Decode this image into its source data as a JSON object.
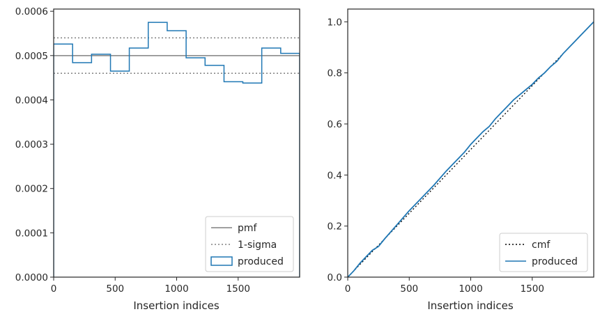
{
  "chart_data": [
    {
      "type": "step",
      "xlabel": "Insertion indices",
      "ylabel": "",
      "xlim": [
        0,
        2000
      ],
      "ylim": [
        0,
        0.000605
      ],
      "xticks": [
        0,
        500,
        1000,
        1500
      ],
      "xtick_labels": [
        "0",
        "500",
        "1000",
        "1500"
      ],
      "yticks": [
        0,
        0.0001,
        0.0002,
        0.0003,
        0.0004,
        0.0005,
        0.0006
      ],
      "ytick_labels": [
        "0.0000",
        "0.0001",
        "0.0002",
        "0.0003",
        "0.0004",
        "0.0005",
        "0.0006"
      ],
      "bin_edges": [
        0,
        154,
        308,
        462,
        615,
        769,
        923,
        1077,
        1231,
        1385,
        1538,
        1692,
        1846,
        2000
      ],
      "series": [
        {
          "name": "pmf",
          "kind": "hline",
          "value": 0.0005,
          "color": "#808080",
          "dash": "solid"
        },
        {
          "name": "1-sigma",
          "kind": "hlines",
          "values": [
            0.00054,
            0.00046
          ],
          "color": "#808080",
          "dash": "dotted"
        },
        {
          "name": "produced",
          "kind": "step",
          "color": "#1f77b4",
          "values": [
            0.000526,
            0.000484,
            0.000503,
            0.000465,
            0.000517,
            0.000575,
            0.000556,
            0.000495,
            0.000478,
            0.000441,
            0.000438,
            0.000517,
            0.000505
          ]
        }
      ],
      "legend": {
        "position": "lower-right",
        "entries": [
          "pmf",
          "1-sigma",
          "produced"
        ]
      },
      "grid": false
    },
    {
      "type": "line",
      "xlabel": "Insertion indices",
      "ylabel": "",
      "xlim": [
        0,
        2000
      ],
      "ylim": [
        0,
        1.05
      ],
      "xticks": [
        0,
        500,
        1000,
        1500
      ],
      "xtick_labels": [
        "0",
        "500",
        "1000",
        "1500"
      ],
      "yticks": [
        0,
        0.2,
        0.4,
        0.6,
        0.8,
        1.0
      ],
      "ytick_labels": [
        "0.0",
        "0.2",
        "0.4",
        "0.6",
        "0.8",
        "1.0"
      ],
      "series": [
        {
          "name": "cmf",
          "color": "#000000",
          "dash": "dotted",
          "x": [
            0,
            2000
          ],
          "y": [
            0,
            1.0
          ]
        },
        {
          "name": "produced",
          "color": "#1f77b4",
          "dash": "solid",
          "x": [
            0,
            50,
            100,
            150,
            200,
            250,
            300,
            400,
            500,
            600,
            700,
            800,
            850,
            900,
            950,
            1000,
            1050,
            1100,
            1150,
            1200,
            1250,
            1300,
            1350,
            1400,
            1450,
            1500,
            1550,
            1600,
            1650,
            1700,
            1750,
            1800,
            1850,
            1900,
            1950,
            2000
          ],
          "y": [
            0,
            0.025,
            0.055,
            0.08,
            0.105,
            0.12,
            0.15,
            0.205,
            0.26,
            0.31,
            0.36,
            0.415,
            0.44,
            0.465,
            0.49,
            0.52,
            0.545,
            0.57,
            0.59,
            0.62,
            0.645,
            0.67,
            0.695,
            0.715,
            0.735,
            0.755,
            0.78,
            0.8,
            0.825,
            0.845,
            0.875,
            0.9,
            0.925,
            0.95,
            0.975,
            1.0
          ]
        }
      ],
      "legend": {
        "position": "lower-right",
        "entries": [
          "cmf",
          "produced"
        ]
      },
      "grid": false
    }
  ]
}
